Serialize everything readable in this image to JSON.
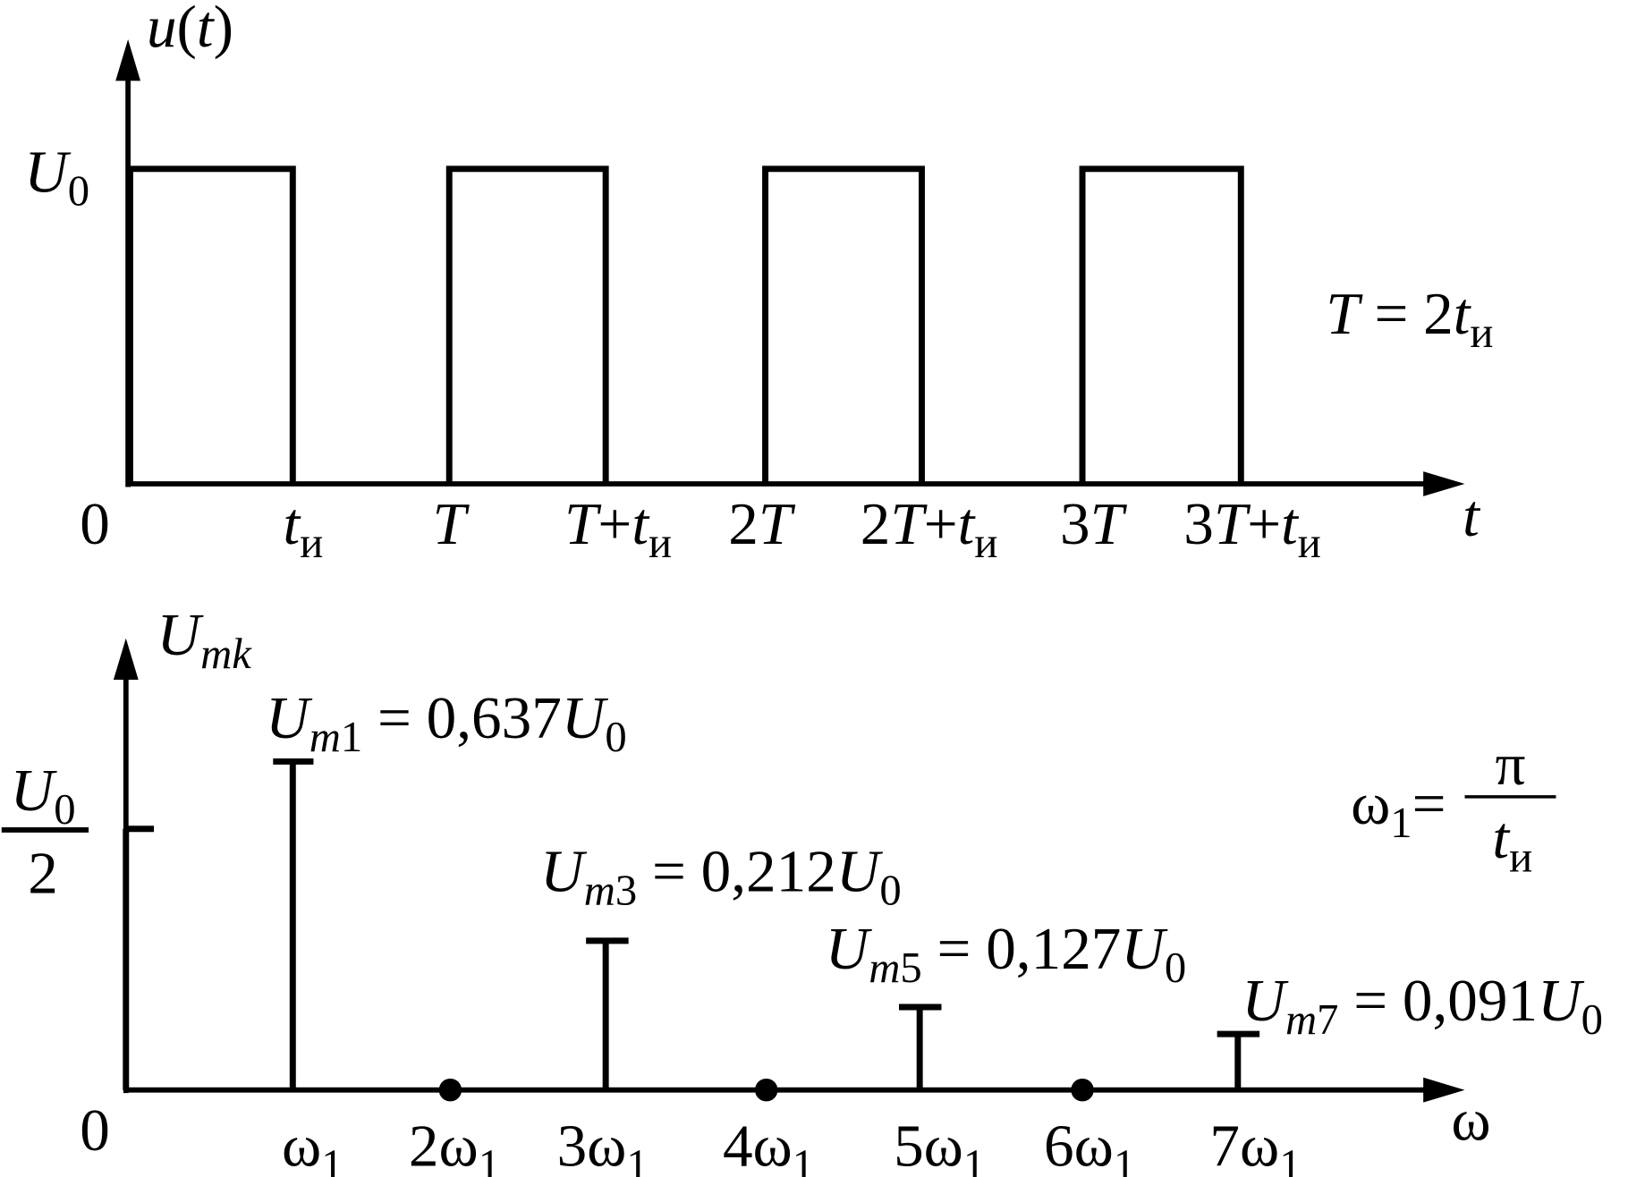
{
  "top": {
    "axis_label": [
      {
        "t": "u",
        "italic": true
      },
      {
        "t": "("
      },
      {
        "t": "t",
        "italic": true
      },
      {
        "t": ")"
      }
    ],
    "level": [
      {
        "t": "U",
        "italic": true
      },
      {
        "t": "0",
        "sub": true
      }
    ],
    "origin": "0",
    "ticks": [
      [
        {
          "t": "t",
          "italic": true
        },
        {
          "t": "и",
          "sub": true
        }
      ],
      [
        {
          "t": "T",
          "italic": true
        }
      ],
      [
        {
          "t": "T",
          "italic": true
        },
        {
          "t": "+"
        },
        {
          "t": "t",
          "italic": true
        },
        {
          "t": "и",
          "sub": true
        }
      ],
      [
        {
          "t": "2"
        },
        {
          "t": "T",
          "italic": true
        }
      ],
      [
        {
          "t": "2"
        },
        {
          "t": "T",
          "italic": true
        },
        {
          "t": "+"
        },
        {
          "t": "t",
          "italic": true
        },
        {
          "t": "и",
          "sub": true
        }
      ],
      [
        {
          "t": "3"
        },
        {
          "t": "T",
          "italic": true
        }
      ],
      [
        {
          "t": "3"
        },
        {
          "t": "T",
          "italic": true
        },
        {
          "t": "+"
        },
        {
          "t": "t",
          "italic": true
        },
        {
          "t": "и",
          "sub": true
        }
      ]
    ],
    "x_label": [
      {
        "t": "t",
        "italic": true
      }
    ],
    "note": [
      {
        "t": "T",
        "italic": true
      },
      {
        "t": " = 2"
      },
      {
        "t": "t",
        "italic": true
      },
      {
        "t": "и",
        "sub": true
      }
    ]
  },
  "bottom": {
    "axis_label": [
      {
        "t": "U",
        "italic": true
      },
      {
        "t": "mk",
        "sub": true,
        "italic": true
      }
    ],
    "half": {
      "numerator": [
        {
          "t": "U",
          "italic": true
        },
        {
          "t": "0",
          "sub": true
        }
      ],
      "denominator": "2"
    },
    "origin": "0",
    "harmonics": [
      [
        {
          "t": "ω"
        },
        {
          "t": "1",
          "sub": true
        }
      ],
      [
        {
          "t": "2ω"
        },
        {
          "t": "1",
          "sub": true
        }
      ],
      [
        {
          "t": "3ω"
        },
        {
          "t": "1",
          "sub": true
        }
      ],
      [
        {
          "t": "4ω"
        },
        {
          "t": "1",
          "sub": true
        }
      ],
      [
        {
          "t": "5ω"
        },
        {
          "t": "1",
          "sub": true
        }
      ],
      [
        {
          "t": "6ω"
        },
        {
          "t": "1",
          "sub": true
        }
      ],
      [
        {
          "t": "7ω"
        },
        {
          "t": "1",
          "sub": true
        }
      ]
    ],
    "amplitudes": [
      [
        {
          "t": "U",
          "italic": true
        },
        {
          "t": "m",
          "sub": true,
          "italic": true
        },
        {
          "t": "1",
          "sub": true
        },
        {
          "t": " = 0,637"
        },
        {
          "t": "U",
          "italic": true
        },
        {
          "t": "0",
          "sub": true
        }
      ],
      [
        {
          "t": "U",
          "italic": true
        },
        {
          "t": "m",
          "sub": true,
          "italic": true
        },
        {
          "t": "3",
          "sub": true
        },
        {
          "t": " = 0,212"
        },
        {
          "t": "U",
          "italic": true
        },
        {
          "t": "0",
          "sub": true
        }
      ],
      [
        {
          "t": "U",
          "italic": true
        },
        {
          "t": "m",
          "sub": true,
          "italic": true
        },
        {
          "t": "5",
          "sub": true
        },
        {
          "t": " = 0,127"
        },
        {
          "t": "U",
          "italic": true
        },
        {
          "t": "0",
          "sub": true
        }
      ],
      [
        {
          "t": "U",
          "italic": true
        },
        {
          "t": "m",
          "sub": true,
          "italic": true
        },
        {
          "t": "7",
          "sub": true
        },
        {
          "t": " = 0,091"
        },
        {
          "t": "U",
          "italic": true
        },
        {
          "t": "0",
          "sub": true
        }
      ]
    ],
    "x_label": [
      {
        "t": "ω"
      }
    ],
    "omega_def": {
      "left": [
        {
          "t": "ω"
        },
        {
          "t": "1",
          "sub": true
        },
        {
          "t": "="
        }
      ],
      "numerator": "π",
      "denominator": [
        {
          "t": "t",
          "italic": true
        },
        {
          "t": "и",
          "sub": true
        }
      ]
    }
  }
}
